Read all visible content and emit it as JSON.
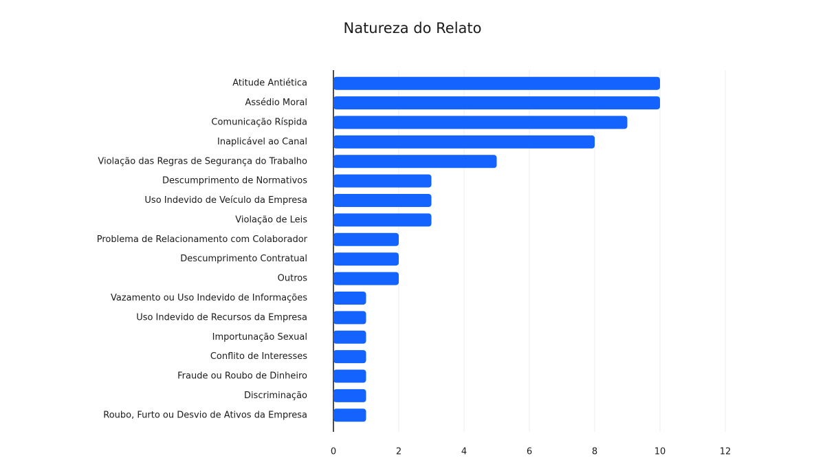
{
  "chart_data": {
    "type": "bar",
    "orientation": "horizontal",
    "title": "Natureza do Relato",
    "categories": [
      "Atitude Antiética",
      "Assédio Moral",
      "Comunicação Ríspida",
      "Inaplicável ao Canal",
      "Violação das Regras de Segurança do Trabalho",
      "Descumprimento de Normativos",
      "Uso Indevido de Veículo da Empresa",
      "Violação de Leis",
      "Problema de Relacionamento com Colaborador",
      "Descumprimento Contratual",
      "Outros",
      "Vazamento ou Uso Indevido de Informações",
      "Uso Indevido de Recursos da Empresa",
      "Importunação Sexual",
      "Conflito de Interesses",
      "Fraude ou Roubo de Dinheiro",
      "Discriminação",
      "Roubo, Furto ou Desvio de Ativos da Empresa"
    ],
    "values": [
      10,
      10,
      9,
      8,
      5,
      3,
      3,
      3,
      2,
      2,
      2,
      1,
      1,
      1,
      1,
      1,
      1,
      1
    ],
    "color": "#1463ff",
    "xlim": [
      0,
      12
    ],
    "xticks": [
      0,
      2,
      4,
      6,
      8,
      10,
      12
    ],
    "grid": true
  }
}
